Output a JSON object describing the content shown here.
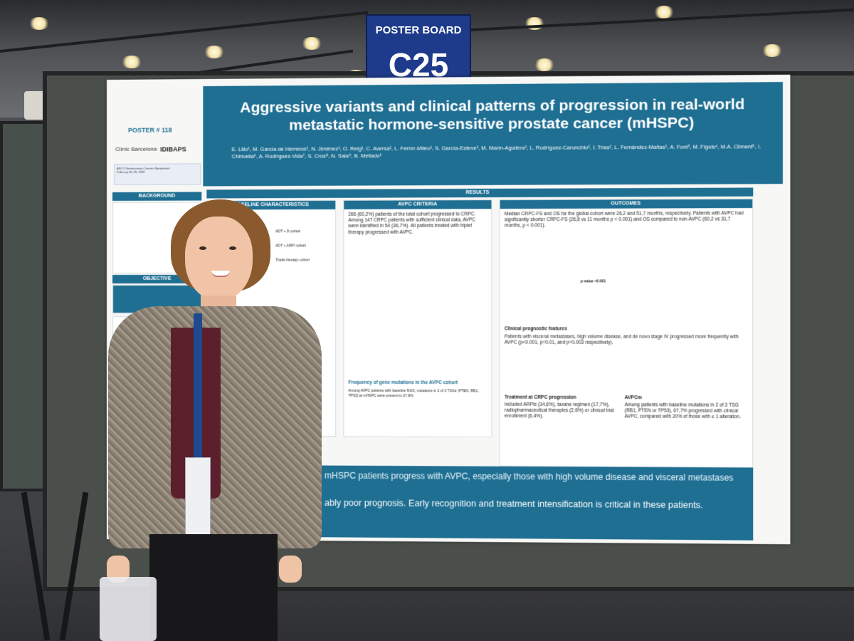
{
  "scene": {
    "sign": {
      "line1": "POSTER BOARD",
      "line2": "C25"
    }
  },
  "poster": {
    "poster_number": "POSTER # 118",
    "logos": {
      "clinic": "Clínic Barcelona",
      "idibaps": "IDIBAPS",
      "asco": "ASCO Genitourinary Cancers Symposium"
    },
    "asco_dates": "February 26–28, 2026",
    "title": "Aggressive variants and clinical patterns of progression in real-world metastatic hormone-sensitive prostate cancer (mHSPC)",
    "authors": "E. Lillo¹, M. García de Herreros¹, N. Jiménez¹, O. Reig¹, C. Aversa¹, L. Ferrer-Mileo¹, S. García-Esteve¹, M. Marín-Aguilera¹, L. Rodríguez-Carunchio², I. Trias², L. Fernández-Mañas¹, A. Font³, M. Figols⁴, M.A. Climent⁵, I. Chirivella⁶, A. Rodríguez-Vida⁷, S. Cros⁸, N. Sala⁹, B. Mellado¹",
    "sections": {
      "background": "BACKGROUND",
      "objective": "OBJECTIVE",
      "results": "RESULTS",
      "outcomes": "OUTCOMES",
      "baseline": "BASELINE CHARACTERISTICS",
      "avpc": "AVPC CRITERIA"
    },
    "avpc_text": "266 (60,2%) patients of the total cohort progressed to CRPC. Among 147 CRPC patients with sufficient clinical data, AVPC were identified in 54 (36,7%). All patients treated with triplet therapy progressed with AVPC.",
    "outcomes_text": "Median CRPC-FS and OS for the global cohort were 26,2 and 51,7 months, respectively. Patients with AVPC had significantly shorter CRPC-FS (26,8 vs 11 months p < 0.001) and OS compared to non-AVPC (60,2 vs 31,7 months, p < 0.001).",
    "clinical_features_title": "Clinical prognostic features",
    "clinical_features_text": "Patients with visceral metastases, high volume disease, and de novo stage IV progressed more frequently with AVPC (p<0.001, p=0.01, and p=0.003 respectively).",
    "mutations_title": "Frequency of gene mutations in the AVPC cohort",
    "mutations_text": "Among AVPC patients with baseline NGS, mutations in 2 of 3 TSGs (PTEN, RB1, TP53) at mHSPC were present in 27.8%",
    "treatment_title": "Treatment at CRPC progression",
    "treatment_text": "included ARPIs (34,6%), taxane regimen (17,7%), radiopharmaceutical therapies (2,6%) or clinical trial enrollment (6,4%).",
    "avpcm_title": "AVPCm",
    "avpcm_text": "Among patients with baseline mutations in 2 of 3 TSG (RB1, PTEN or TP53), 67,7% progressed with clinical AVPC, compared with 20% of those with ≤ 1 alteration.",
    "conclusion_1": "mHSPC patients progress with AVPC, especially those with high volume disease and visceral metastases",
    "conclusion_2": "ably poor prognosis. Early recognition and treatment intensification is critical in these patients.",
    "labels": {
      "adt_d": "ADT + D cohort",
      "adt_arpi": "ADT + ARPI cohort",
      "triplet": "Triplet therapy cohort",
      "pvalue": "p-value <0.001"
    }
  }
}
